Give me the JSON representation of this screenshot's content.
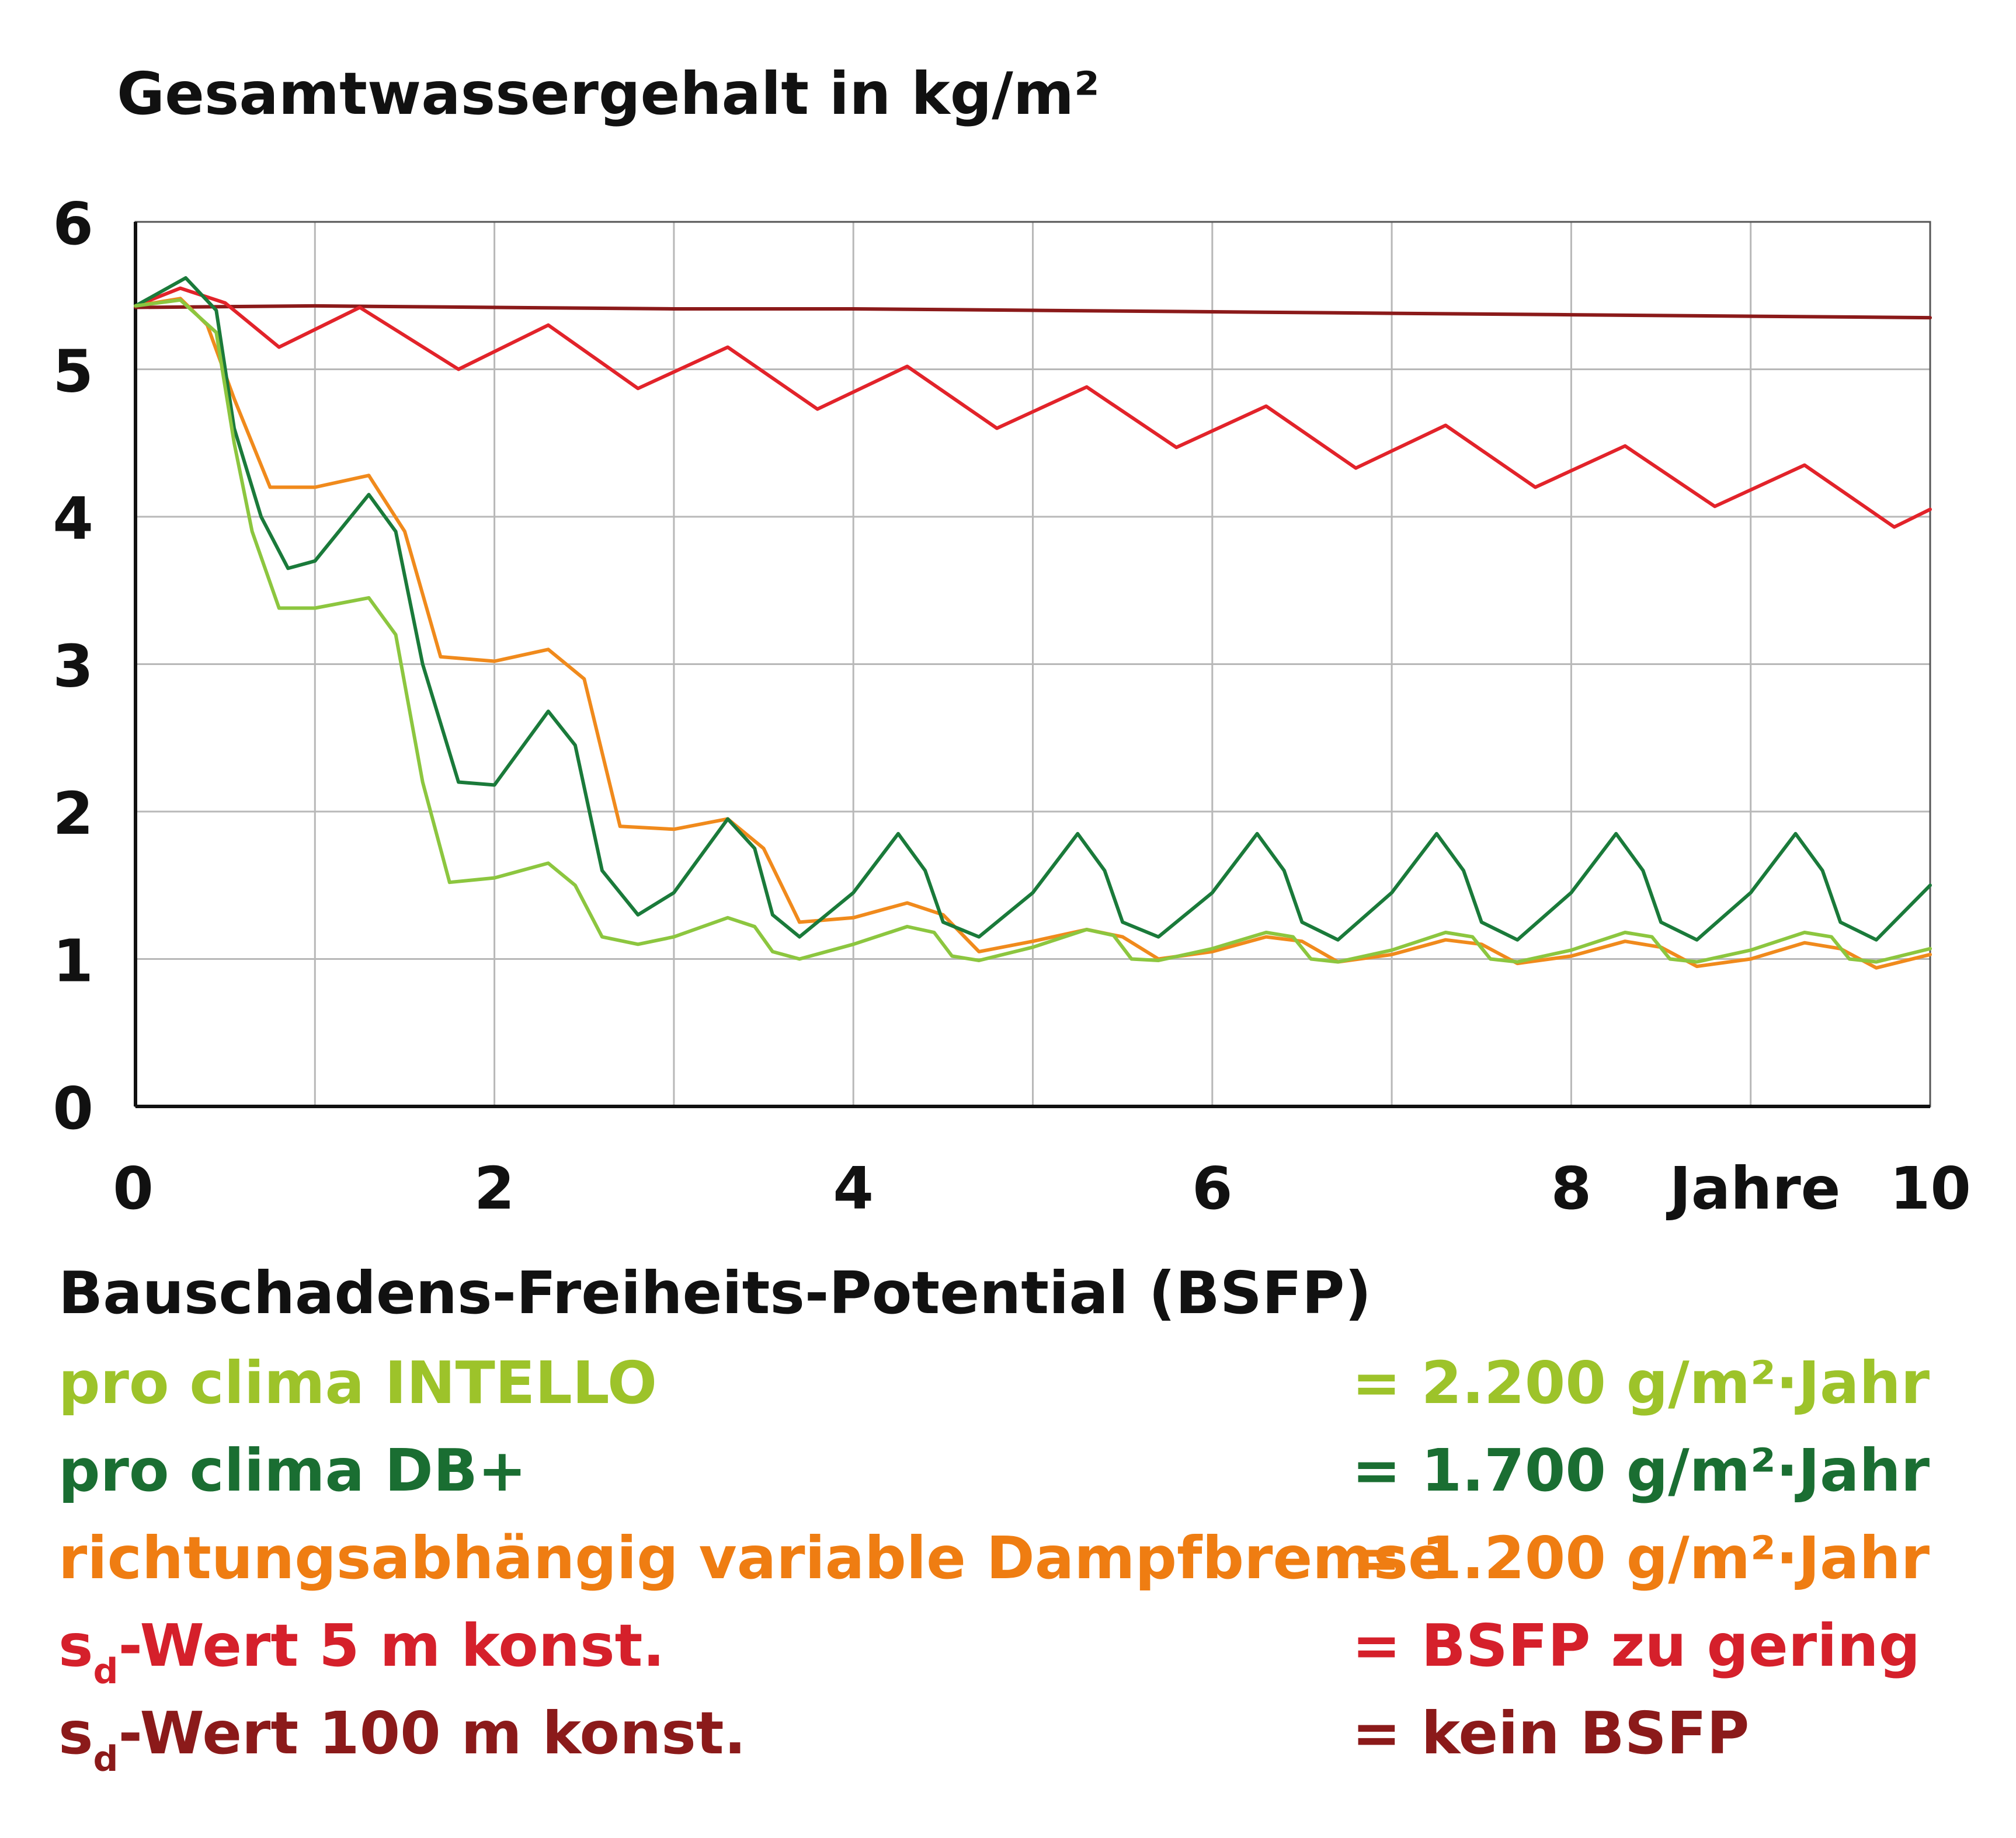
{
  "chart_data": {
    "type": "line",
    "title": "Gesamtwassergehalt in kg/m²",
    "xlabel": "Jahre",
    "xlim": [
      0,
      10
    ],
    "ylim": [
      0,
      6
    ],
    "x_ticks": [
      "0",
      "2",
      "4",
      "6",
      "8",
      "10"
    ],
    "y_ticks": [
      "0",
      "1",
      "2",
      "3",
      "4",
      "5",
      "6"
    ],
    "grid": true,
    "series": [
      {
        "name": "sd-Wert 100 m konst.",
        "color": "#8b1a1a",
        "points": [
          [
            0,
            5.42
          ],
          [
            1,
            5.43
          ],
          [
            2,
            5.42
          ],
          [
            3,
            5.41
          ],
          [
            4,
            5.41
          ],
          [
            5,
            5.4
          ],
          [
            6,
            5.39
          ],
          [
            7,
            5.38
          ],
          [
            8,
            5.37
          ],
          [
            9,
            5.36
          ],
          [
            10,
            5.35
          ]
        ]
      },
      {
        "name": "sd-Wert 5 m konst.",
        "color": "#e2232a",
        "points": [
          [
            0,
            5.43
          ],
          [
            0.25,
            5.55
          ],
          [
            0.5,
            5.45
          ],
          [
            0.8,
            5.15
          ],
          [
            1.25,
            5.42
          ],
          [
            1.8,
            5.0
          ],
          [
            2.3,
            5.3
          ],
          [
            2.8,
            4.87
          ],
          [
            3.3,
            5.15
          ],
          [
            3.8,
            4.73
          ],
          [
            4.3,
            5.02
          ],
          [
            4.8,
            4.6
          ],
          [
            5.3,
            4.88
          ],
          [
            5.8,
            4.47
          ],
          [
            6.3,
            4.75
          ],
          [
            6.8,
            4.33
          ],
          [
            7.3,
            4.62
          ],
          [
            7.8,
            4.2
          ],
          [
            8.3,
            4.48
          ],
          [
            8.8,
            4.07
          ],
          [
            9.3,
            4.35
          ],
          [
            9.8,
            3.93
          ],
          [
            10,
            4.05
          ]
        ]
      },
      {
        "name": "richtungsabhängig variable Dampfbremse",
        "color": "#f08a1c",
        "points": [
          [
            0,
            5.43
          ],
          [
            0.25,
            5.48
          ],
          [
            0.4,
            5.3
          ],
          [
            0.55,
            4.8
          ],
          [
            0.75,
            4.2
          ],
          [
            1.0,
            4.2
          ],
          [
            1.3,
            4.28
          ],
          [
            1.5,
            3.9
          ],
          [
            1.7,
            3.05
          ],
          [
            2.0,
            3.02
          ],
          [
            2.3,
            3.1
          ],
          [
            2.5,
            2.9
          ],
          [
            2.7,
            1.9
          ],
          [
            3.0,
            1.88
          ],
          [
            3.3,
            1.95
          ],
          [
            3.5,
            1.75
          ],
          [
            3.7,
            1.25
          ],
          [
            4.0,
            1.28
          ],
          [
            4.3,
            1.38
          ],
          [
            4.5,
            1.3
          ],
          [
            4.7,
            1.05
          ],
          [
            5.0,
            1.12
          ],
          [
            5.3,
            1.2
          ],
          [
            5.5,
            1.15
          ],
          [
            5.7,
            1.0
          ],
          [
            6.0,
            1.05
          ],
          [
            6.3,
            1.15
          ],
          [
            6.5,
            1.12
          ],
          [
            6.7,
            0.98
          ],
          [
            7.0,
            1.03
          ],
          [
            7.3,
            1.13
          ],
          [
            7.5,
            1.1
          ],
          [
            7.7,
            0.97
          ],
          [
            8.0,
            1.02
          ],
          [
            8.3,
            1.12
          ],
          [
            8.5,
            1.08
          ],
          [
            8.7,
            0.95
          ],
          [
            9.0,
            1.0
          ],
          [
            9.3,
            1.11
          ],
          [
            9.5,
            1.07
          ],
          [
            9.7,
            0.94
          ],
          [
            10,
            1.03
          ]
        ]
      },
      {
        "name": "pro clima DB+",
        "color": "#1a7a3a",
        "points": [
          [
            0,
            5.43
          ],
          [
            0.28,
            5.62
          ],
          [
            0.45,
            5.4
          ],
          [
            0.55,
            4.6
          ],
          [
            0.7,
            4.0
          ],
          [
            0.85,
            3.65
          ],
          [
            1.0,
            3.7
          ],
          [
            1.3,
            4.15
          ],
          [
            1.45,
            3.9
          ],
          [
            1.6,
            3.0
          ],
          [
            1.8,
            2.2
          ],
          [
            2.0,
            2.18
          ],
          [
            2.3,
            2.68
          ],
          [
            2.45,
            2.45
          ],
          [
            2.6,
            1.6
          ],
          [
            2.8,
            1.3
          ],
          [
            3.0,
            1.45
          ],
          [
            3.3,
            1.95
          ],
          [
            3.45,
            1.75
          ],
          [
            3.55,
            1.3
          ],
          [
            3.7,
            1.15
          ],
          [
            4.0,
            1.45
          ],
          [
            4.25,
            1.85
          ],
          [
            4.4,
            1.6
          ],
          [
            4.5,
            1.25
          ],
          [
            4.7,
            1.15
          ],
          [
            5.0,
            1.45
          ],
          [
            5.25,
            1.85
          ],
          [
            5.4,
            1.6
          ],
          [
            5.5,
            1.25
          ],
          [
            5.7,
            1.15
          ],
          [
            6.0,
            1.45
          ],
          [
            6.25,
            1.85
          ],
          [
            6.4,
            1.6
          ],
          [
            6.5,
            1.25
          ],
          [
            6.7,
            1.13
          ],
          [
            7.0,
            1.45
          ],
          [
            7.25,
            1.85
          ],
          [
            7.4,
            1.6
          ],
          [
            7.5,
            1.25
          ],
          [
            7.7,
            1.13
          ],
          [
            8.0,
            1.45
          ],
          [
            8.25,
            1.85
          ],
          [
            8.4,
            1.6
          ],
          [
            8.5,
            1.25
          ],
          [
            8.7,
            1.13
          ],
          [
            9.0,
            1.45
          ],
          [
            9.25,
            1.85
          ],
          [
            9.4,
            1.6
          ],
          [
            9.5,
            1.25
          ],
          [
            9.7,
            1.13
          ],
          [
            10,
            1.5
          ]
        ]
      },
      {
        "name": "pro clima INTELLO",
        "color": "#8cc63f",
        "points": [
          [
            0,
            5.43
          ],
          [
            0.25,
            5.47
          ],
          [
            0.45,
            5.25
          ],
          [
            0.55,
            4.5
          ],
          [
            0.65,
            3.9
          ],
          [
            0.8,
            3.38
          ],
          [
            1.0,
            3.38
          ],
          [
            1.3,
            3.45
          ],
          [
            1.45,
            3.2
          ],
          [
            1.6,
            2.2
          ],
          [
            1.75,
            1.52
          ],
          [
            2.0,
            1.55
          ],
          [
            2.3,
            1.65
          ],
          [
            2.45,
            1.5
          ],
          [
            2.6,
            1.15
          ],
          [
            2.8,
            1.1
          ],
          [
            3.0,
            1.15
          ],
          [
            3.3,
            1.28
          ],
          [
            3.45,
            1.22
          ],
          [
            3.55,
            1.05
          ],
          [
            3.7,
            1.0
          ],
          [
            4.0,
            1.1
          ],
          [
            4.3,
            1.22
          ],
          [
            4.45,
            1.18
          ],
          [
            4.55,
            1.02
          ],
          [
            4.7,
            0.99
          ],
          [
            5.0,
            1.08
          ],
          [
            5.3,
            1.2
          ],
          [
            5.45,
            1.16
          ],
          [
            5.55,
            1.0
          ],
          [
            5.7,
            0.99
          ],
          [
            6.0,
            1.07
          ],
          [
            6.3,
            1.18
          ],
          [
            6.45,
            1.15
          ],
          [
            6.55,
            1.0
          ],
          [
            6.7,
            0.98
          ],
          [
            7.0,
            1.06
          ],
          [
            7.3,
            1.18
          ],
          [
            7.45,
            1.15
          ],
          [
            7.55,
            1.0
          ],
          [
            7.7,
            0.98
          ],
          [
            8.0,
            1.06
          ],
          [
            8.3,
            1.18
          ],
          [
            8.45,
            1.15
          ],
          [
            8.55,
            1.0
          ],
          [
            8.7,
            0.98
          ],
          [
            9.0,
            1.06
          ],
          [
            9.3,
            1.18
          ],
          [
            9.45,
            1.15
          ],
          [
            9.55,
            1.0
          ],
          [
            9.7,
            0.98
          ],
          [
            10,
            1.07
          ]
        ]
      }
    ]
  },
  "legend": {
    "title": "Bauschadens-Freiheits-Potential (BSFP)",
    "rows": [
      {
        "name": "pro clima INTELLO",
        "value": "= 2.200 g/m²·Jahr",
        "color": "#9dc32a"
      },
      {
        "name": "pro clima DB+",
        "value": "= 1.700 g/m²·Jahr",
        "color": "#1a6e32"
      },
      {
        "name": "richtungsabhängig variable Dampfbremse",
        "value": "= 1.200 g/m²·Jahr",
        "color": "#ef7d12"
      },
      {
        "name_prefix": "s",
        "name_sub": "d",
        "name_rest": "-Wert 5 m konst.",
        "value": "= BSFP zu gering",
        "color": "#d5202b"
      },
      {
        "name_prefix": "s",
        "name_sub": "d",
        "name_rest": "-Wert 100 m konst.",
        "value": "= kein BSFP",
        "color": "#8b1a1a"
      }
    ]
  }
}
